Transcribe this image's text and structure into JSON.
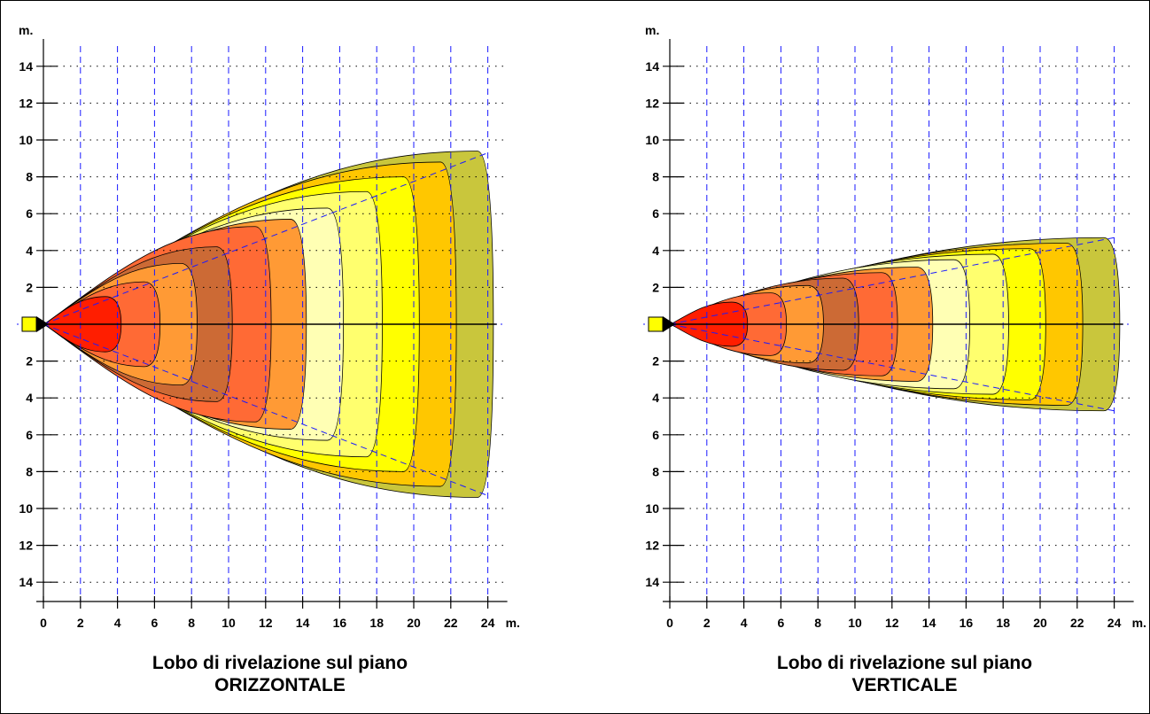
{
  "colors": {
    "zones": [
      "#C9C63C",
      "#FFC700",
      "#FFFF00",
      "#FFFF6E",
      "#FFFFB4",
      "#FF9A35",
      "#FF6A35",
      "#CC6A35",
      "#FF9A35",
      "#FF6A35",
      "#FF1E00"
    ],
    "sensor": "#FFFF00",
    "grid_dash": "#1a1aff"
  },
  "chart_data": [
    {
      "type": "area",
      "title": "Lobo di rivelazione sul piano",
      "subtitle": "ORIZZONTALE",
      "xlabel": "m.",
      "ylabel": "m.",
      "xlim": [
        0,
        24
      ],
      "ylim": [
        -15,
        15
      ],
      "x_ticks": [
        "0",
        "2",
        "4",
        "6",
        "8",
        "10",
        "12",
        "14",
        "16",
        "18",
        "20",
        "22",
        "24"
      ],
      "y_ticks_upper": [
        "14",
        "12",
        "10",
        "8",
        "6",
        "4",
        "2"
      ],
      "y_ticks_lower": [
        "2",
        "4",
        "6",
        "8",
        "10",
        "12",
        "14"
      ],
      "grid": true,
      "guide_line": {
        "x": [
          0,
          24
        ],
        "half_width": [
          0,
          9.3
        ]
      },
      "zones": [
        {
          "x_end": 24.3,
          "half_width": 9.4
        },
        {
          "x_end": 22.3,
          "half_width": 8.8
        },
        {
          "x_end": 20.3,
          "half_width": 8.0
        },
        {
          "x_end": 18.3,
          "half_width": 7.2
        },
        {
          "x_end": 16.2,
          "half_width": 6.3
        },
        {
          "x_end": 14.2,
          "half_width": 5.7
        },
        {
          "x_end": 12.3,
          "half_width": 5.3
        },
        {
          "x_end": 10.2,
          "half_width": 4.2
        },
        {
          "x_end": 8.3,
          "half_width": 3.3
        },
        {
          "x_end": 6.3,
          "half_width": 2.3
        },
        {
          "x_end": 4.2,
          "half_width": 1.5
        }
      ]
    },
    {
      "type": "area",
      "title": "Lobo di rivelazione sul piano",
      "subtitle": "VERTICALE",
      "xlabel": "m.",
      "ylabel": "m.",
      "xlim": [
        0,
        24
      ],
      "ylim": [
        -15,
        15
      ],
      "x_ticks": [
        "0",
        "2",
        "4",
        "6",
        "8",
        "10",
        "12",
        "14",
        "16",
        "18",
        "20",
        "22",
        "24"
      ],
      "y_ticks_upper": [
        "14",
        "12",
        "10",
        "8",
        "6",
        "4",
        "2"
      ],
      "y_ticks_lower": [
        "2",
        "4",
        "6",
        "8",
        "10",
        "12",
        "14"
      ],
      "grid": true,
      "guide_line": {
        "x": [
          0,
          24
        ],
        "half_width": [
          0,
          4.7
        ]
      },
      "zones": [
        {
          "x_end": 24.3,
          "half_width": 4.7
        },
        {
          "x_end": 22.3,
          "half_width": 4.4
        },
        {
          "x_end": 20.3,
          "half_width": 4.1
        },
        {
          "x_end": 18.3,
          "half_width": 3.8
        },
        {
          "x_end": 16.2,
          "half_width": 3.5
        },
        {
          "x_end": 14.2,
          "half_width": 3.1
        },
        {
          "x_end": 12.3,
          "half_width": 2.8
        },
        {
          "x_end": 10.2,
          "half_width": 2.5
        },
        {
          "x_end": 8.3,
          "half_width": 2.1
        },
        {
          "x_end": 6.3,
          "half_width": 1.7
        },
        {
          "x_end": 4.2,
          "half_width": 1.2
        }
      ]
    }
  ]
}
